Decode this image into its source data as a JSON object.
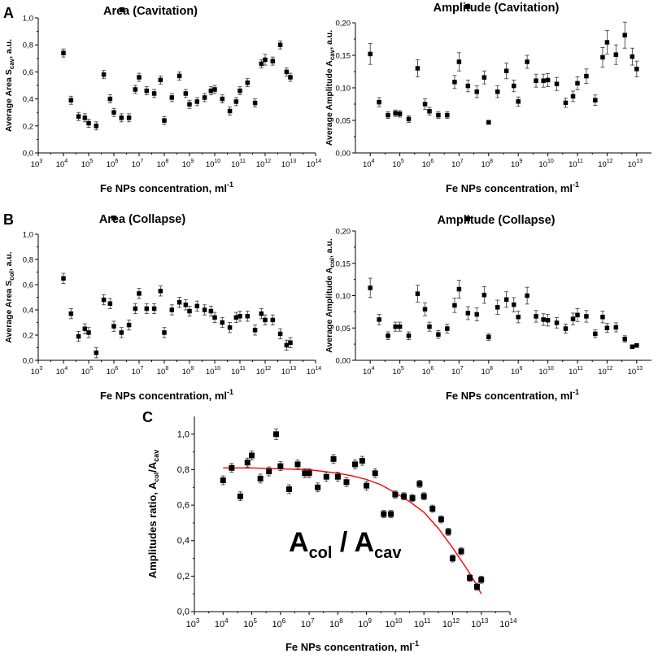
{
  "figure": {
    "x_axis_label": "Fe NPs concentration, ml",
    "x_axis_unit_exp": "-1"
  },
  "chart_data": [
    {
      "id": "A_area",
      "type": "scatter",
      "panel_label": "A",
      "title": "Area (Cavitation)",
      "ylabel_prefix": "Average Area S",
      "ylabel_sub": "cav",
      "ylabel_suffix": ", a.u.",
      "xlabel": "Fe NPs concentration, ml",
      "xlim_log10": [
        3,
        14
      ],
      "ylim": [
        0,
        1.0
      ],
      "yticks": [
        0.0,
        0.2,
        0.4,
        0.6,
        0.8,
        1.0
      ],
      "ytick_decimals": 1,
      "x_log10": [
        4.0,
        4.3,
        4.6,
        4.85,
        5.0,
        5.3,
        5.6,
        5.85,
        6.0,
        6.3,
        6.6,
        6.85,
        7.0,
        7.3,
        7.6,
        7.85,
        8.0,
        8.3,
        8.6,
        8.85,
        9.0,
        9.3,
        9.6,
        9.85,
        10.0,
        10.3,
        10.6,
        10.85,
        11.0,
        11.3,
        11.6,
        11.85,
        12.0,
        12.3,
        12.6,
        12.85,
        13.0
      ],
      "y": [
        0.74,
        0.39,
        0.27,
        0.26,
        0.22,
        0.2,
        0.58,
        0.4,
        0.3,
        0.26,
        0.26,
        0.47,
        0.56,
        0.46,
        0.44,
        0.54,
        0.24,
        0.41,
        0.57,
        0.44,
        0.36,
        0.38,
        0.41,
        0.46,
        0.47,
        0.4,
        0.31,
        0.38,
        0.46,
        0.52,
        0.37,
        0.66,
        0.69,
        0.68,
        0.8,
        0.6,
        0.56
      ],
      "err": [
        0.03,
        0.03,
        0.03,
        0.03,
        0.03,
        0.03,
        0.03,
        0.03,
        0.03,
        0.03,
        0.03,
        0.03,
        0.03,
        0.03,
        0.03,
        0.03,
        0.03,
        0.03,
        0.03,
        0.03,
        0.03,
        0.03,
        0.03,
        0.03,
        0.03,
        0.03,
        0.03,
        0.03,
        0.03,
        0.03,
        0.03,
        0.03,
        0.04,
        0.03,
        0.03,
        0.03,
        0.03
      ]
    },
    {
      "id": "A_amp",
      "type": "scatter",
      "panel_label": "",
      "title": "Amplitude (Cavitation)",
      "ylabel_prefix": "Average Amplitude A",
      "ylabel_sub": "cav",
      "ylabel_suffix": ", a.u.",
      "xlabel": "Fe NPs concentration, ml",
      "xlim_log10": [
        3.5,
        13.5
      ],
      "ylim": [
        0,
        0.2
      ],
      "yticks": [
        0.0,
        0.05,
        0.1,
        0.15,
        0.2
      ],
      "ytick_decimals": 2,
      "x_log10": [
        4.0,
        4.3,
        4.6,
        4.85,
        5.0,
        5.3,
        5.6,
        5.85,
        6.0,
        6.3,
        6.6,
        6.85,
        7.0,
        7.3,
        7.6,
        7.85,
        8.0,
        8.3,
        8.6,
        8.85,
        9.0,
        9.3,
        9.6,
        9.85,
        10.0,
        10.3,
        10.6,
        10.85,
        11.0,
        11.3,
        11.6,
        11.85,
        12.0,
        12.3,
        12.6,
        12.85,
        13.0
      ],
      "y": [
        0.152,
        0.078,
        0.058,
        0.061,
        0.06,
        0.052,
        0.13,
        0.075,
        0.064,
        0.058,
        0.058,
        0.109,
        0.14,
        0.103,
        0.094,
        0.116,
        0.047,
        0.094,
        0.126,
        0.103,
        0.079,
        0.14,
        0.111,
        0.111,
        0.112,
        0.106,
        0.077,
        0.087,
        0.107,
        0.118,
        0.081,
        0.147,
        0.17,
        0.151,
        0.181,
        0.148,
        0.129
      ],
      "err": [
        0.016,
        0.007,
        0.005,
        0.005,
        0.005,
        0.005,
        0.013,
        0.008,
        0.006,
        0.005,
        0.005,
        0.01,
        0.014,
        0.009,
        0.009,
        0.01,
        0.003,
        0.009,
        0.012,
        0.009,
        0.007,
        0.01,
        0.01,
        0.01,
        0.01,
        0.01,
        0.007,
        0.008,
        0.01,
        0.011,
        0.008,
        0.015,
        0.018,
        0.015,
        0.02,
        0.013,
        0.012
      ]
    },
    {
      "id": "B_area",
      "type": "scatter",
      "panel_label": "B",
      "title": "Area (Collapse)",
      "ylabel_prefix": "Average Area S",
      "ylabel_sub": "col",
      "ylabel_suffix": ", a.u.",
      "xlabel": "Fe NPs concentration, ml",
      "xlim_log10": [
        3,
        14
      ],
      "ylim": [
        0,
        1.0
      ],
      "yticks": [
        0.0,
        0.2,
        0.4,
        0.6,
        0.8,
        1.0
      ],
      "ytick_decimals": 1,
      "x_log10": [
        4.0,
        4.3,
        4.6,
        4.85,
        5.0,
        5.3,
        5.6,
        5.85,
        6.0,
        6.3,
        6.6,
        6.85,
        7.0,
        7.3,
        7.6,
        7.85,
        8.0,
        8.3,
        8.6,
        8.85,
        9.0,
        9.3,
        9.6,
        9.85,
        10.0,
        10.3,
        10.6,
        10.85,
        11.0,
        11.3,
        11.6,
        11.85,
        12.0,
        12.3,
        12.6,
        12.85,
        13.0
      ],
      "y": [
        0.65,
        0.37,
        0.19,
        0.25,
        0.22,
        0.06,
        0.48,
        0.45,
        0.27,
        0.22,
        0.28,
        0.41,
        0.53,
        0.41,
        0.41,
        0.55,
        0.22,
        0.4,
        0.46,
        0.44,
        0.39,
        0.43,
        0.4,
        0.39,
        0.34,
        0.3,
        0.26,
        0.34,
        0.35,
        0.35,
        0.24,
        0.37,
        0.32,
        0.32,
        0.21,
        0.12,
        0.14
      ],
      "err": [
        0.04,
        0.04,
        0.04,
        0.04,
        0.04,
        0.04,
        0.04,
        0.04,
        0.04,
        0.04,
        0.04,
        0.04,
        0.04,
        0.04,
        0.04,
        0.04,
        0.04,
        0.04,
        0.04,
        0.04,
        0.04,
        0.04,
        0.04,
        0.04,
        0.04,
        0.04,
        0.04,
        0.04,
        0.04,
        0.04,
        0.04,
        0.04,
        0.04,
        0.04,
        0.04,
        0.04,
        0.04
      ]
    },
    {
      "id": "B_amp",
      "type": "scatter",
      "panel_label": "",
      "title": "Amplitude (Collapse)",
      "ylabel_prefix": "Average Amplitude A",
      "ylabel_sub": "col",
      "ylabel_suffix": ", a.u.",
      "xlabel": "Fe NPs concentration, ml",
      "xlim_log10": [
        3.5,
        13.5
      ],
      "ylim": [
        0,
        0.2
      ],
      "yticks": [
        0.0,
        0.05,
        0.1,
        0.15,
        0.2
      ],
      "ytick_decimals": 2,
      "x_log10": [
        4.0,
        4.3,
        4.6,
        4.85,
        5.0,
        5.3,
        5.6,
        5.85,
        6.0,
        6.3,
        6.6,
        6.85,
        7.0,
        7.3,
        7.6,
        7.85,
        8.0,
        8.3,
        8.6,
        8.85,
        9.0,
        9.3,
        9.6,
        9.85,
        10.0,
        10.3,
        10.6,
        10.85,
        11.0,
        11.3,
        11.6,
        11.85,
        12.0,
        12.3,
        12.6,
        12.85,
        13.0
      ],
      "y": [
        0.112,
        0.063,
        0.038,
        0.052,
        0.052,
        0.038,
        0.103,
        0.079,
        0.052,
        0.04,
        0.049,
        0.085,
        0.11,
        0.073,
        0.071,
        0.101,
        0.036,
        0.082,
        0.094,
        0.086,
        0.067,
        0.1,
        0.068,
        0.063,
        0.062,
        0.058,
        0.049,
        0.064,
        0.07,
        0.068,
        0.041,
        0.067,
        0.05,
        0.051,
        0.033,
        0.021,
        0.023
      ],
      "err": [
        0.015,
        0.008,
        0.006,
        0.007,
        0.007,
        0.006,
        0.013,
        0.01,
        0.007,
        0.006,
        0.007,
        0.011,
        0.014,
        0.01,
        0.01,
        0.013,
        0.005,
        0.011,
        0.012,
        0.011,
        0.009,
        0.013,
        0.009,
        0.009,
        0.009,
        0.008,
        0.007,
        0.009,
        0.01,
        0.009,
        0.006,
        0.009,
        0.007,
        0.007,
        0.005,
        0.003,
        0.003
      ]
    },
    {
      "id": "C_ratio",
      "type": "scatter",
      "panel_label": "C",
      "title": "",
      "ylabel_prefix": "Amplitudes ratio, A",
      "ylabel_sub": "col",
      "ylabel_mid": "/A",
      "ylabel_sub2": "cav",
      "xlabel": "Fe NPs concentration, ml",
      "annotation_main_1": "A",
      "annotation_sub_1": "col",
      "annotation_sep": " / A",
      "annotation_sub_2": "cav",
      "xlim_log10": [
        3,
        14
      ],
      "ylim": [
        0,
        1.1
      ],
      "yticks": [
        0.0,
        0.2,
        0.4,
        0.6,
        0.8,
        1.0
      ],
      "ytick_decimals": 1,
      "x_log10": [
        4.0,
        4.3,
        4.6,
        4.85,
        5.0,
        5.3,
        5.6,
        5.85,
        6.0,
        6.3,
        6.6,
        6.85,
        7.0,
        7.3,
        7.6,
        7.85,
        8.0,
        8.3,
        8.6,
        8.85,
        9.0,
        9.3,
        9.6,
        9.85,
        10.0,
        10.3,
        10.6,
        10.85,
        11.0,
        11.3,
        11.6,
        11.85,
        12.0,
        12.3,
        12.6,
        12.85,
        13.0
      ],
      "y": [
        0.74,
        0.81,
        0.65,
        0.84,
        0.88,
        0.75,
        0.79,
        1.0,
        0.82,
        0.69,
        0.83,
        0.78,
        0.78,
        0.7,
        0.76,
        0.86,
        0.76,
        0.73,
        0.83,
        0.85,
        0.71,
        0.78,
        0.55,
        0.55,
        0.66,
        0.65,
        0.64,
        0.72,
        0.65,
        0.58,
        0.52,
        0.45,
        0.3,
        0.34,
        0.19,
        0.14,
        0.18
      ],
      "err": [
        0.025,
        0.025,
        0.025,
        0.025,
        0.025,
        0.025,
        0.025,
        0.03,
        0.025,
        0.025,
        0.025,
        0.025,
        0.025,
        0.025,
        0.025,
        0.025,
        0.025,
        0.025,
        0.025,
        0.025,
        0.025,
        0.025,
        0.02,
        0.02,
        0.02,
        0.02,
        0.02,
        0.02,
        0.02,
        0.02,
        0.02,
        0.02,
        0.02,
        0.02,
        0.02,
        0.02,
        0.02
      ],
      "fit_curve": {
        "color": "#ff0000",
        "x_log10": [
          4.0,
          5.0,
          6.0,
          7.0,
          8.0,
          8.5,
          9.0,
          9.5,
          10.0,
          10.5,
          11.0,
          11.5,
          12.0,
          12.5,
          12.8,
          13.0
        ],
        "y": [
          0.81,
          0.81,
          0.805,
          0.8,
          0.78,
          0.765,
          0.745,
          0.715,
          0.67,
          0.62,
          0.56,
          0.47,
          0.36,
          0.24,
          0.16,
          0.1
        ]
      }
    }
  ]
}
